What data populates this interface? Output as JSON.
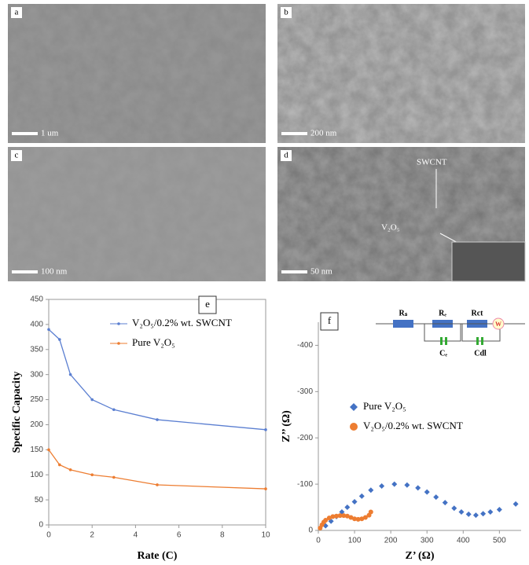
{
  "panels": [
    {
      "label": "a",
      "scale": "1 um"
    },
    {
      "label": "b",
      "scale": "200 nm"
    },
    {
      "label": "c",
      "scale": "100 nm"
    },
    {
      "label": "d",
      "scale": "50 nm",
      "annotations": [
        "SWCNT",
        "V₂O₅"
      ]
    }
  ],
  "circuit": [
    "Rₛ",
    "Rₑ",
    "Rct",
    "Cₑ",
    "Cdl",
    "W"
  ],
  "chart_data": [
    {
      "type": "line",
      "panel": "e",
      "xlabel": "Rate (C)",
      "ylabel": "Specific Capacity",
      "xlim": [
        0,
        10
      ],
      "xticks": [
        0,
        2,
        4,
        6,
        8,
        10
      ],
      "ylim": [
        0,
        450
      ],
      "yticks": [
        0,
        50,
        100,
        150,
        200,
        250,
        300,
        350,
        400,
        450
      ],
      "x": [
        0,
        0.5,
        1,
        2,
        3,
        5,
        10
      ],
      "series": [
        {
          "name": "V₂O₅/0.2% wt. SWCNT",
          "color": "#5b7fd1",
          "values": [
            390,
            370,
            300,
            250,
            230,
            210,
            190
          ]
        },
        {
          "name": "Pure V₂O₅",
          "color": "#ed7d31",
          "values": [
            150,
            120,
            110,
            100,
            95,
            80,
            72
          ]
        }
      ]
    },
    {
      "type": "scatter",
      "panel": "f",
      "xlabel": "Z’ (Ω)",
      "ylabel": "Z’’ (Ω)",
      "xlim": [
        0,
        560
      ],
      "xticks": [
        0,
        100,
        200,
        300,
        400,
        500
      ],
      "ylim": [
        0,
        -450
      ],
      "yticks": [
        0,
        -100,
        -200,
        -300,
        -400
      ],
      "series": [
        {
          "name": "Pure V₂O₅",
          "color": "#4472c4",
          "marker": "diamond",
          "x": [
            20,
            35,
            50,
            65,
            80,
            100,
            120,
            145,
            175,
            210,
            245,
            275,
            300,
            325,
            350,
            375,
            395,
            415,
            435,
            455,
            475,
            500,
            545
          ],
          "values": [
            -10,
            -20,
            -30,
            -40,
            -50,
            -62,
            -74,
            -87,
            -96,
            -100,
            -98,
            -92,
            -83,
            -72,
            -60,
            -48,
            -40,
            -35,
            -33,
            -36,
            -40,
            -45,
            -57
          ]
        },
        {
          "name": "V₂O₅/0.2% wt. SWCNT",
          "color": "#ed7d31",
          "marker": "circle",
          "x": [
            5,
            10,
            15,
            20,
            30,
            40,
            50,
            60,
            70,
            80,
            90,
            100,
            110,
            120,
            130,
            140,
            145
          ],
          "values": [
            -5,
            -12,
            -18,
            -22,
            -27,
            -30,
            -31,
            -32,
            -32,
            -31,
            -28,
            -25,
            -24,
            -25,
            -28,
            -33,
            -40
          ]
        }
      ]
    }
  ]
}
